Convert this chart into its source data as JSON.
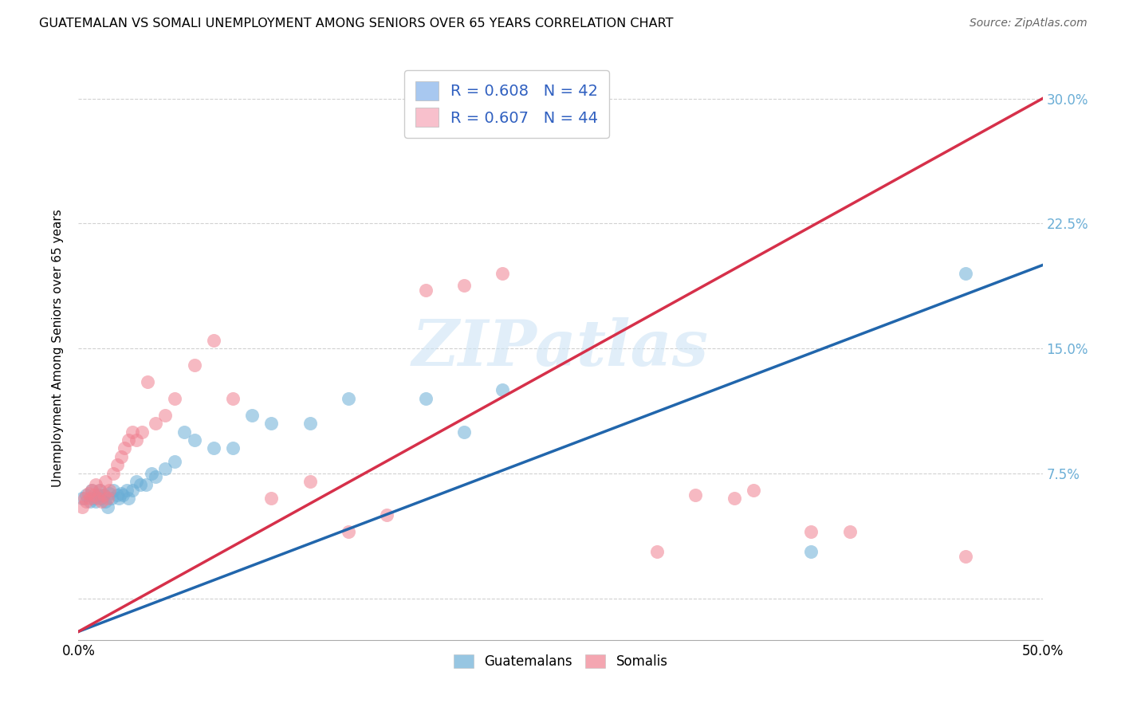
{
  "title": "GUATEMALAN VS SOMALI UNEMPLOYMENT AMONG SENIORS OVER 65 YEARS CORRELATION CHART",
  "source": "Source: ZipAtlas.com",
  "ylabel": "Unemployment Among Seniors over 65 years",
  "xmin": 0.0,
  "xmax": 0.5,
  "ymin": -0.025,
  "ymax": 0.325,
  "xticks": [
    0.0,
    0.1,
    0.2,
    0.3,
    0.4,
    0.5
  ],
  "xtick_labels": [
    "0.0%",
    "",
    "",
    "",
    "",
    "50.0%"
  ],
  "yticks": [
    0.0,
    0.075,
    0.15,
    0.225,
    0.3
  ],
  "ytick_labels": [
    "",
    "7.5%",
    "15.0%",
    "22.5%",
    "30.0%"
  ],
  "legend_r_n": [
    "R = 0.608   N = 42",
    "R = 0.607   N = 44"
  ],
  "bottom_legend": [
    "Guatemalans",
    "Somalis"
  ],
  "blue_color": "#6baed6",
  "pink_color": "#f08090",
  "blue_line_color": "#2166ac",
  "pink_line_color": "#d6304a",
  "legend_blue_patch": "#a8c8f0",
  "legend_pink_patch": "#f8c0cc",
  "watermark_text": "ZIPatlas",
  "blue_line_x0": 0.0,
  "blue_line_y0": -0.02,
  "blue_line_x1": 0.5,
  "blue_line_y1": 0.2,
  "pink_line_x0": 0.0,
  "pink_line_y0": -0.02,
  "pink_line_x1": 0.5,
  "pink_line_y1": 0.3,
  "guatemalan_x": [
    0.002,
    0.004,
    0.006,
    0.007,
    0.008,
    0.009,
    0.01,
    0.011,
    0.012,
    0.013,
    0.014,
    0.015,
    0.016,
    0.017,
    0.018,
    0.02,
    0.021,
    0.022,
    0.023,
    0.025,
    0.026,
    0.028,
    0.03,
    0.032,
    0.035,
    0.038,
    0.04,
    0.045,
    0.05,
    0.055,
    0.06,
    0.07,
    0.08,
    0.09,
    0.1,
    0.12,
    0.14,
    0.18,
    0.2,
    0.22,
    0.38,
    0.46
  ],
  "guatemalan_y": [
    0.06,
    0.062,
    0.058,
    0.065,
    0.06,
    0.058,
    0.062,
    0.065,
    0.06,
    0.062,
    0.058,
    0.055,
    0.063,
    0.06,
    0.065,
    0.062,
    0.06,
    0.063,
    0.062,
    0.065,
    0.06,
    0.065,
    0.07,
    0.068,
    0.068,
    0.075,
    0.073,
    0.078,
    0.082,
    0.1,
    0.095,
    0.09,
    0.09,
    0.11,
    0.105,
    0.105,
    0.12,
    0.12,
    0.1,
    0.125,
    0.028,
    0.195
  ],
  "somali_x": [
    0.002,
    0.003,
    0.004,
    0.005,
    0.006,
    0.007,
    0.008,
    0.009,
    0.01,
    0.011,
    0.012,
    0.013,
    0.014,
    0.015,
    0.016,
    0.018,
    0.02,
    0.022,
    0.024,
    0.026,
    0.028,
    0.03,
    0.033,
    0.036,
    0.04,
    0.045,
    0.05,
    0.06,
    0.07,
    0.08,
    0.1,
    0.12,
    0.14,
    0.16,
    0.18,
    0.2,
    0.22,
    0.3,
    0.32,
    0.34,
    0.35,
    0.38,
    0.4,
    0.46
  ],
  "somali_y": [
    0.055,
    0.06,
    0.058,
    0.063,
    0.06,
    0.065,
    0.062,
    0.068,
    0.06,
    0.065,
    0.058,
    0.062,
    0.07,
    0.06,
    0.065,
    0.075,
    0.08,
    0.085,
    0.09,
    0.095,
    0.1,
    0.095,
    0.1,
    0.13,
    0.105,
    0.11,
    0.12,
    0.14,
    0.155,
    0.12,
    0.06,
    0.07,
    0.04,
    0.05,
    0.185,
    0.188,
    0.195,
    0.028,
    0.062,
    0.06,
    0.065,
    0.04,
    0.04,
    0.025
  ]
}
